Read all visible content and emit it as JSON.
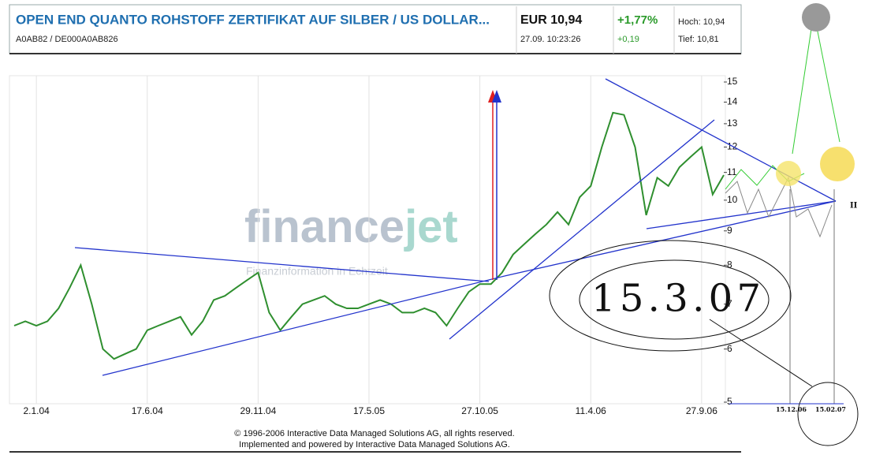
{
  "header": {
    "title": "OPEN END QUANTO ROHSTOFF ZERTIFIKAT AUF SILBER / US DOLLAR...",
    "codes": "A0AB82  /  DE000A0AB826",
    "price": "EUR 10,94",
    "time": "27.09. 10:23:26",
    "change_pct": "+1,77%",
    "change_abs": "+0,19",
    "high": "Hoch: 10,94",
    "low": "Tief: 10,81"
  },
  "chart_data": {
    "type": "line",
    "color": "#2f8f2f",
    "log_scale": true,
    "grid": "x",
    "categories": [
      null,
      null,
      "2.1.04",
      null,
      null,
      null,
      null,
      null,
      null,
      null,
      null,
      null,
      "17.6.04",
      null,
      null,
      null,
      null,
      null,
      null,
      null,
      null,
      null,
      "29.11.04",
      null,
      null,
      null,
      null,
      null,
      null,
      null,
      null,
      null,
      "17.5.05",
      null,
      null,
      null,
      null,
      null,
      null,
      null,
      null,
      null,
      "27.10.05",
      null,
      null,
      null,
      null,
      null,
      null,
      null,
      null,
      null,
      "11.4.06",
      null,
      null,
      null,
      null,
      null,
      null,
      null,
      null,
      null,
      "27.9.06",
      null,
      null
    ],
    "values": [
      6.5,
      6.6,
      6.5,
      6.6,
      6.9,
      7.4,
      8.0,
      7.0,
      6.0,
      5.8,
      5.9,
      6.0,
      6.4,
      6.5,
      6.6,
      6.7,
      6.3,
      6.6,
      7.1,
      7.2,
      7.4,
      7.6,
      7.8,
      6.8,
      6.4,
      6.7,
      7.0,
      7.1,
      7.2,
      7.0,
      6.9,
      6.9,
      7.0,
      7.1,
      7.0,
      6.8,
      6.8,
      6.9,
      6.8,
      6.5,
      6.9,
      7.3,
      7.5,
      7.5,
      7.8,
      8.3,
      8.6,
      8.9,
      9.2,
      9.6,
      9.2,
      10.1,
      10.5,
      12.0,
      13.5,
      13.4,
      12.0,
      9.5,
      10.8,
      10.5,
      11.2,
      11.6,
      12.0,
      10.2,
      10.9
    ],
    "ylim": [
      5,
      15
    ],
    "yticks": [
      5,
      6,
      7,
      8,
      9,
      10,
      11,
      12,
      13,
      14,
      15
    ]
  },
  "watermark": [
    "finance",
    "jet",
    "Finanzinformation in Echtzeit"
  ],
  "footer": [
    "© 1996-2006 Interactive Data Managed Solutions AG, all rights reserved.",
    "Implemented and powered by Interactive Data Managed Solutions AG."
  ],
  "annotations": [
    "15.3.07",
    "15.12.06",
    "15.02.07",
    "II"
  ]
}
